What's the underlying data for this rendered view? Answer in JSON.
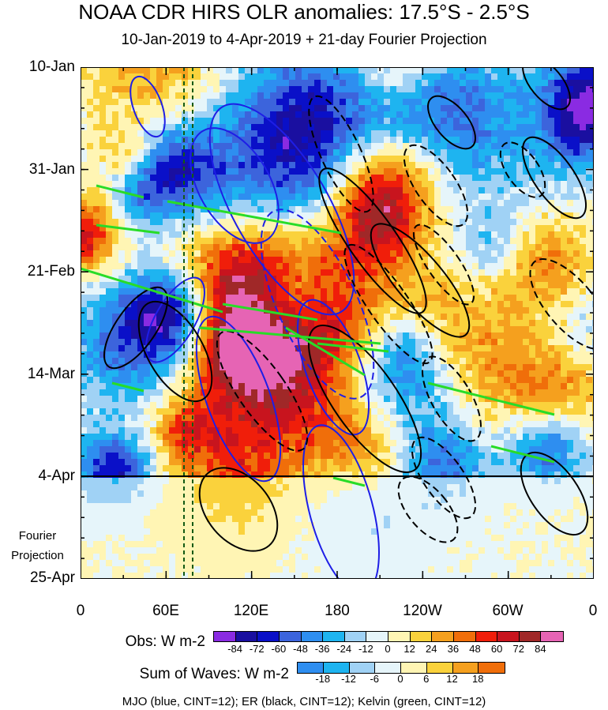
{
  "chart_data": {
    "type": "heatmap",
    "title": "NOAA CDR HIRS OLR anomalies: 17.5°S - 2.5°S",
    "subtitle": "10-Jan-2019 to 4-Apr-2019 + 21-day Fourier Projection",
    "y_ticks": [
      "10-Jan",
      "31-Jan",
      "21-Feb",
      "14-Mar",
      "4-Apr",
      "25-Apr"
    ],
    "x_ticks": [
      "0",
      "60E",
      "120E",
      "180",
      "120W",
      "60W",
      "0"
    ],
    "x_range": [
      0,
      360
    ],
    "y_range": [
      "10-Jan-2019",
      "25-Apr-2019"
    ],
    "projection_start": "4-Apr",
    "projection_note": [
      "Fourier",
      "Projection"
    ],
    "obs_colorbar": {
      "label": "Obs: W m-2",
      "levels": [
        -84,
        -72,
        -60,
        -48,
        -36,
        -24,
        -12,
        0,
        12,
        24,
        36,
        48,
        60,
        72,
        84
      ],
      "colors": [
        "#8a2be2",
        "#1a0fa0",
        "#0a10c8",
        "#3c64dc",
        "#2e8ef0",
        "#1eb4f0",
        "#a0d2f5",
        "#e6f5fa",
        "#fff5b4",
        "#fad23c",
        "#f5a01e",
        "#f06e0a",
        "#f01e0a",
        "#c8141e",
        "#a02828",
        "#e664b4"
      ]
    },
    "waves_colorbar": {
      "label": "Sum of Waves: W m-2",
      "levels": [
        -18,
        -12,
        -6,
        0,
        6,
        12,
        18
      ],
      "colors": [
        "#2e8ef0",
        "#1eb4f0",
        "#a0d2f5",
        "#e6f5fa",
        "#fff5b4",
        "#fad23c",
        "#f5a01e",
        "#f06e0a"
      ]
    },
    "footer": "MJO (blue, CINT=12); ER (black, CINT=12); Kelvin (green, CINT=12)",
    "legend_colors": {
      "mjo": "#1e1ee6",
      "er": "#000000",
      "kelvin": "#28dc28"
    }
  }
}
